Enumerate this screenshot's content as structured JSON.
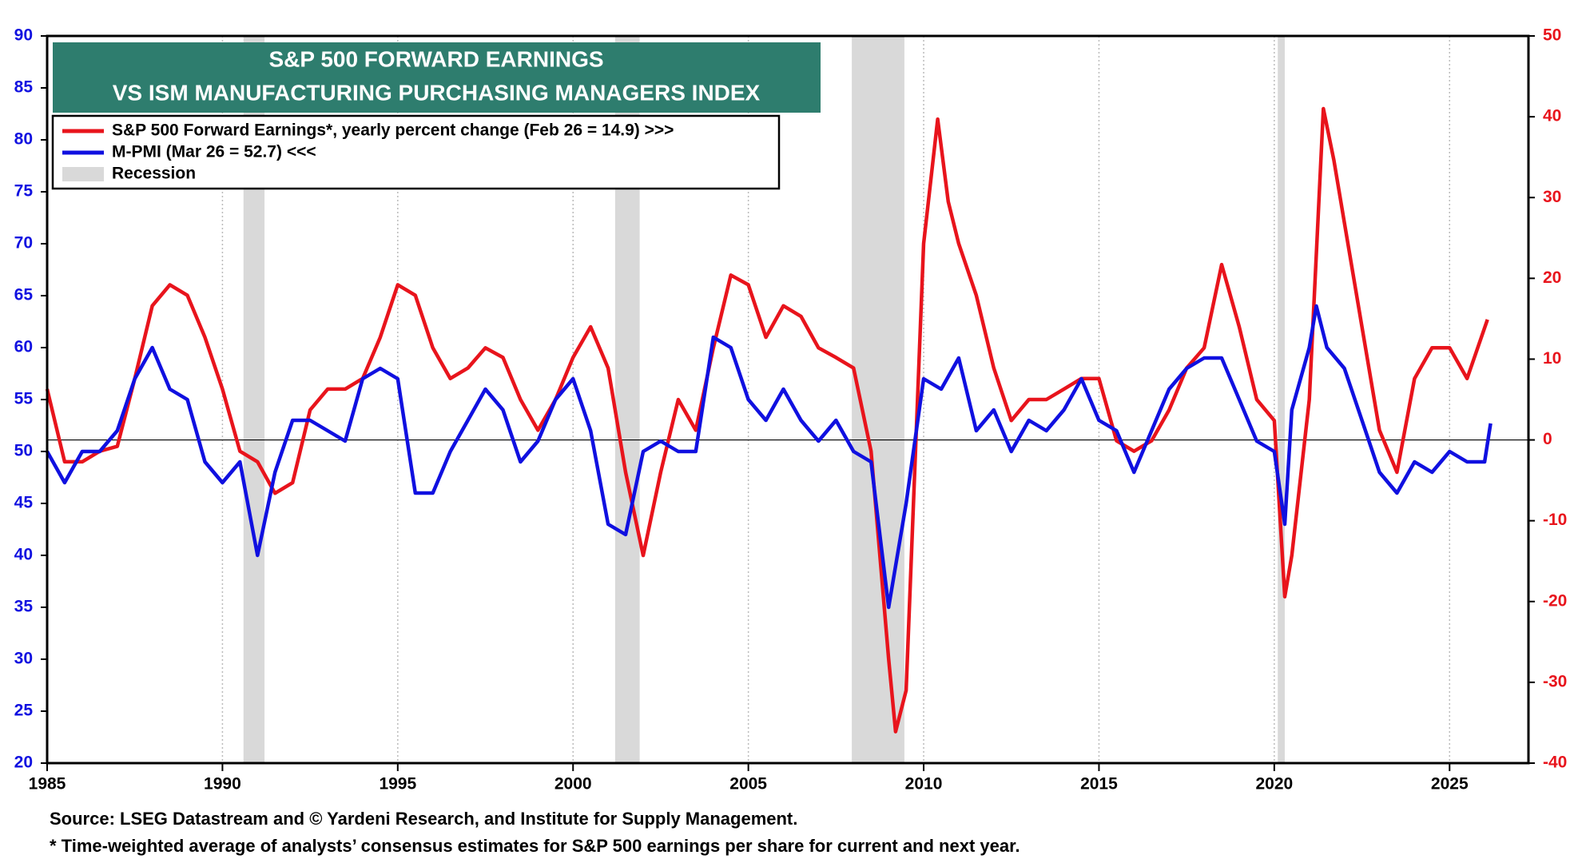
{
  "chart_data": {
    "type": "line",
    "title": [
      "S&P 500 FORWARD EARNINGS",
      "VS ISM MANUFACTURING PURCHASING MANAGERS INDEX"
    ],
    "xlim": [
      1985,
      2027.25
    ],
    "xticks": [
      1985,
      1990,
      1995,
      2000,
      2005,
      2010,
      2015,
      2020,
      2025
    ],
    "ylim": [
      20,
      90
    ],
    "yticks": [
      20,
      25,
      30,
      35,
      40,
      45,
      50,
      55,
      60,
      65,
      70,
      75,
      80,
      85,
      90
    ],
    "y2lim": [
      -40,
      50
    ],
    "y2ticks": [
      -40,
      -30,
      -20,
      -10,
      0,
      10,
      20,
      30,
      40,
      50
    ],
    "grid": "x",
    "legend": "top-left",
    "recession_label": "Recession",
    "recession_color": "#d9d9d9",
    "recessions": [
      {
        "start": 1990.6,
        "end": 1991.2
      },
      {
        "start": 2001.2,
        "end": 2001.9
      },
      {
        "start": 2007.95,
        "end": 2009.45
      },
      {
        "start": 2020.1,
        "end": 2020.3
      }
    ],
    "series": [
      {
        "name": "S&P 500 Forward Earnings*, yearly percent change  (Feb 26 = 14.9) >>>",
        "color": "#e8141c",
        "axis": "y2",
        "x": [
          1985.0,
          1985.5,
          1986.0,
          1986.5,
          1987.0,
          1987.5,
          1988.0,
          1988.5,
          1989.0,
          1989.5,
          1990.0,
          1990.5,
          1991.0,
          1991.5,
          1992.0,
          1992.5,
          1993.0,
          1993.5,
          1994.0,
          1994.5,
          1995.0,
          1995.5,
          1996.0,
          1996.5,
          1997.0,
          1997.5,
          1998.0,
          1998.5,
          1999.0,
          1999.5,
          2000.0,
          2000.5,
          2001.0,
          2001.5,
          2002.0,
          2002.5,
          2003.0,
          2003.5,
          2004.0,
          2004.5,
          2005.0,
          2005.5,
          2006.0,
          2006.5,
          2007.0,
          2007.5,
          2008.0,
          2008.5,
          2009.0,
          2009.2,
          2009.5,
          2010.0,
          2010.4,
          2010.7,
          2011.0,
          2011.5,
          2012.0,
          2012.5,
          2013.0,
          2013.5,
          2014.0,
          2014.5,
          2015.0,
          2015.5,
          2016.0,
          2016.5,
          2017.0,
          2017.5,
          2018.0,
          2018.5,
          2019.0,
          2019.5,
          2020.0,
          2020.3,
          2020.5,
          2021.0,
          2021.4,
          2021.7,
          2022.0,
          2022.5,
          2023.0,
          2023.5,
          2024.0,
          2024.5,
          2025.0,
          2025.5,
          2026.08
        ],
        "values": [
          6.3,
          -2.7,
          -2.7,
          -1.4,
          -0.8,
          7.6,
          16.6,
          19.2,
          17.9,
          12.7,
          6.3,
          -1.4,
          -2.7,
          -6.6,
          -5.3,
          3.7,
          6.3,
          6.3,
          7.6,
          12.7,
          19.2,
          17.9,
          11.4,
          7.6,
          8.9,
          11.4,
          10.2,
          5.0,
          1.2,
          5.0,
          10.2,
          14.0,
          8.9,
          -4.0,
          -14.3,
          -4.0,
          5.0,
          1.2,
          11.4,
          20.4,
          19.2,
          12.7,
          16.6,
          15.3,
          11.4,
          10.2,
          8.9,
          -1.4,
          -27.1,
          -36.1,
          -31.0,
          24.3,
          39.7,
          29.5,
          24.3,
          17.9,
          8.9,
          2.4,
          5.0,
          5.0,
          6.3,
          7.6,
          7.6,
          -0.1,
          -1.4,
          -0.1,
          3.7,
          8.9,
          11.4,
          21.7,
          14.0,
          5.0,
          2.4,
          -19.4,
          -14.3,
          5.0,
          41.0,
          34.6,
          26.9,
          14.0,
          1.2,
          -4.0,
          7.6,
          11.4,
          11.4,
          7.6,
          14.9
        ]
      },
      {
        "name": "M-PMI (Mar 26 = 52.7) <<<",
        "color": "#1010e0",
        "axis": "y",
        "x": [
          1985.0,
          1985.5,
          1986.0,
          1986.5,
          1987.0,
          1987.5,
          1988.0,
          1988.5,
          1989.0,
          1989.5,
          1990.0,
          1990.5,
          1991.0,
          1991.5,
          1992.0,
          1992.5,
          1993.0,
          1993.5,
          1994.0,
          1994.5,
          1995.0,
          1995.5,
          1996.0,
          1996.5,
          1997.0,
          1997.5,
          1998.0,
          1998.5,
          1999.0,
          1999.5,
          2000.0,
          2000.5,
          2001.0,
          2001.5,
          2002.0,
          2002.5,
          2003.0,
          2003.5,
          2004.0,
          2004.5,
          2005.0,
          2005.5,
          2006.0,
          2006.5,
          2007.0,
          2007.5,
          2008.0,
          2008.5,
          2009.0,
          2009.5,
          2010.0,
          2010.5,
          2011.0,
          2011.5,
          2012.0,
          2012.5,
          2013.0,
          2013.5,
          2014.0,
          2014.5,
          2015.0,
          2015.5,
          2016.0,
          2016.5,
          2017.0,
          2017.5,
          2018.0,
          2018.5,
          2019.0,
          2019.5,
          2020.0,
          2020.3,
          2020.5,
          2021.0,
          2021.2,
          2021.5,
          2022.0,
          2022.5,
          2023.0,
          2023.5,
          2024.0,
          2024.5,
          2025.0,
          2025.5,
          2026.0,
          2026.17
        ],
        "values": [
          50,
          47,
          50,
          50,
          52,
          57,
          60,
          56,
          55,
          49,
          47,
          49,
          40,
          48,
          53,
          53,
          52,
          51,
          57,
          58,
          57,
          46,
          46,
          50,
          53,
          56,
          54,
          49,
          51,
          55,
          57,
          52,
          43,
          42,
          50,
          51,
          50,
          50,
          61,
          60,
          55,
          53,
          56,
          53,
          51,
          53,
          50,
          49,
          35,
          45,
          57,
          56,
          59,
          52,
          54,
          50,
          53,
          52,
          54,
          57,
          53,
          52,
          48,
          52,
          56,
          58,
          59,
          59,
          55,
          51,
          50,
          43,
          54,
          60,
          64,
          60,
          58,
          53,
          48,
          46,
          49,
          48,
          50,
          49,
          49,
          52.7
        ]
      }
    ],
    "notes": [
      "Source: LSEG Datastream and © Yardeni Research, and Institute for Supply Management.",
      "* Time-weighted average of analysts’ consensus estimates for S&P 500 earnings per share for current and next year."
    ]
  }
}
